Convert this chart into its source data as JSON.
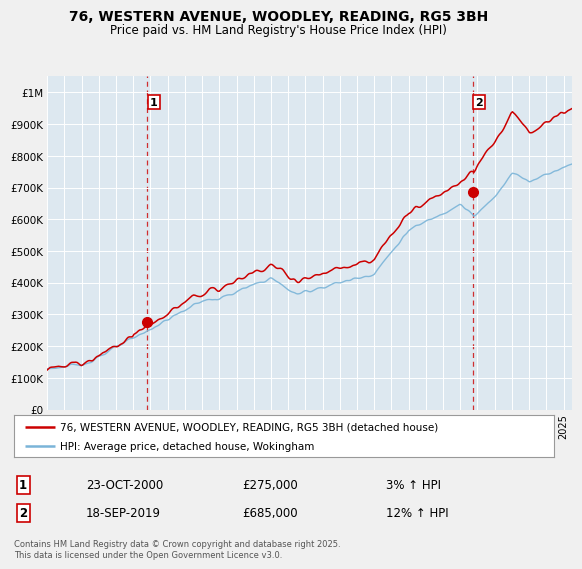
{
  "title": "76, WESTERN AVENUE, WOODLEY, READING, RG5 3BH",
  "subtitle": "Price paid vs. HM Land Registry's House Price Index (HPI)",
  "legend_line1": "76, WESTERN AVENUE, WOODLEY, READING, RG5 3BH (detached house)",
  "legend_line2": "HPI: Average price, detached house, Wokingham",
  "annotation1_label": "1",
  "annotation1_date": "23-OCT-2000",
  "annotation1_price": "£275,000",
  "annotation1_hpi": "3% ↑ HPI",
  "annotation2_label": "2",
  "annotation2_date": "18-SEP-2019",
  "annotation2_price": "£685,000",
  "annotation2_hpi": "12% ↑ HPI",
  "footer": "Contains HM Land Registry data © Crown copyright and database right 2025.\nThis data is licensed under the Open Government Licence v3.0.",
  "sale1_x": 2000.81,
  "sale1_y": 275000,
  "sale2_x": 2019.72,
  "sale2_y": 685000,
  "hpi_color": "#7ab4d8",
  "price_color": "#cc0000",
  "vline_color": "#cc0000",
  "background_color": "#f0f0f0",
  "plot_bg_color": "#dde8f0",
  "ylim": [
    0,
    1050000
  ],
  "xlim_start": 1995.0,
  "xlim_end": 2025.5
}
